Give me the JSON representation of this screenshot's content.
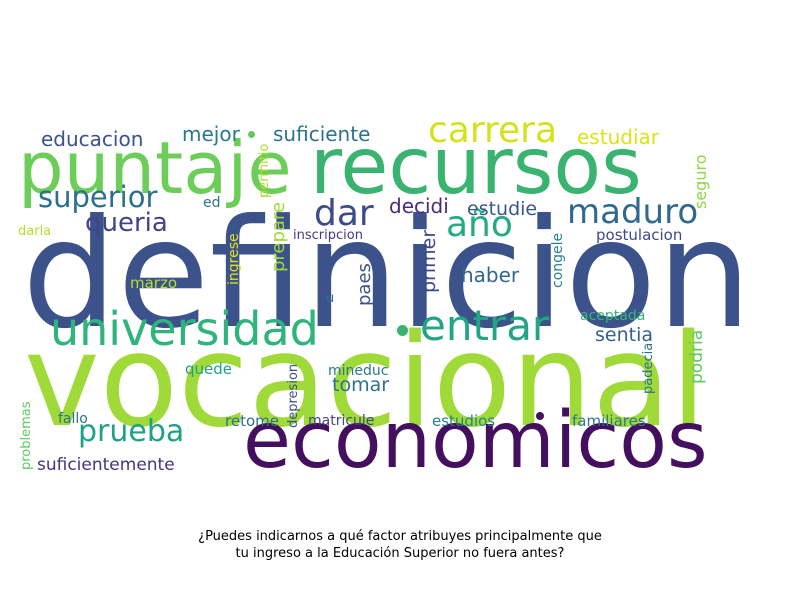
{
  "caption": {
    "line1": "¿Puedes indicarnos a qué factor atribuyes principalmente que",
    "line2": "tu ingreso a la Educación Superior no fuera antes?"
  },
  "colors": {
    "dark_purple": "#482173",
    "indigo": "#3b528b",
    "blue": "#2c728e",
    "teal": "#21918c",
    "green_teal": "#28ae80",
    "green": "#5ec962",
    "lime": "#addc30",
    "yellow": "#e4e419"
  },
  "words": [
    {
      "id": "definicion",
      "text": "definicion",
      "color": "#3b528b"
    },
    {
      "id": "vocacional",
      "text": "vocacional",
      "color": "#a0da39"
    },
    {
      "id": "economicos",
      "text": "economicos",
      "color": "#440f5e"
    },
    {
      "id": "recursos",
      "text": "recursos",
      "color": "#3ab371"
    },
    {
      "id": "puntaje",
      "text": "puntaje",
      "color": "#6cce59"
    },
    {
      "id": "universidad",
      "text": "universidad",
      "color": "#2fb47c"
    },
    {
      "id": "entrar",
      "text": "entrar",
      "color": "#21a585"
    },
    {
      "id": "carrera",
      "text": "carrera",
      "color": "#d5e21a"
    },
    {
      "id": "maduro",
      "text": "maduro",
      "color": "#31688e"
    },
    {
      "id": "dar",
      "text": "dar",
      "color": "#3e4a89"
    },
    {
      "id": "ano",
      "text": "año",
      "color": "#25ab82"
    },
    {
      "id": "superior",
      "text": "superior",
      "color": "#2d708e"
    },
    {
      "id": "prueba",
      "text": "prueba",
      "color": "#1fa187"
    },
    {
      "id": "queria",
      "text": "queria",
      "color": "#414487"
    },
    {
      "id": "educacion",
      "text": "educacion",
      "color": "#3b528b"
    },
    {
      "id": "mejor",
      "text": "mejor",
      "color": "#2a788e"
    },
    {
      "id": "suficiente",
      "text": "suficiente",
      "color": "#2c728e"
    },
    {
      "id": "estudiar",
      "text": "estudiar",
      "color": "#dde318"
    },
    {
      "id": "decidi",
      "text": "decidi",
      "color": "#472d7b"
    },
    {
      "id": "estudie",
      "text": "estudie",
      "color": "#38588c"
    },
    {
      "id": "haber",
      "text": "haber",
      "color": "#31688e"
    },
    {
      "id": "sentia",
      "text": "sentia",
      "color": "#355f8d"
    },
    {
      "id": "tomar",
      "text": "tomar",
      "color": "#2c728e"
    },
    {
      "id": "suficientemente",
      "text": "suficientemente",
      "color": "#46337e"
    },
    {
      "id": "seguro",
      "text": "seguro",
      "color": "#90d743"
    },
    {
      "id": "podria",
      "text": "podria",
      "color": "#5ec962"
    },
    {
      "id": "postulacion",
      "text": "postulacion",
      "color": "#3e4989"
    },
    {
      "id": "aceptada",
      "text": "aceptada",
      "color": "#35b779"
    },
    {
      "id": "familiares",
      "text": "familiares",
      "color": "#2a788e"
    },
    {
      "id": "estudios",
      "text": "estudios",
      "color": "#26828e"
    },
    {
      "id": "matricule",
      "text": "matricule",
      "color": "#414487"
    },
    {
      "id": "retome",
      "text": "retome",
      "color": "#2c728e"
    },
    {
      "id": "inscripcion",
      "text": "inscripcion",
      "color": "#443983"
    },
    {
      "id": "ed",
      "text": "ed",
      "color": "#2c728e"
    },
    {
      "id": "darla",
      "text": "darla",
      "color": "#b5de2b"
    },
    {
      "id": "marzo",
      "text": "marzo",
      "color": "#b5de2b"
    },
    {
      "id": "quede",
      "text": "quede",
      "color": "#1fa187"
    },
    {
      "id": "mineduc",
      "text": "mineduc",
      "color": "#2a788e"
    },
    {
      "id": "fallo",
      "text": "fallo",
      "color": "#2c728e"
    },
    {
      "id": "u",
      "text": "u",
      "color": "#2c728e"
    },
    {
      "id": "primer",
      "text": "primer",
      "color": "#3e4989"
    },
    {
      "id": "paes",
      "text": "paes",
      "color": "#3b528b"
    },
    {
      "id": "prepare",
      "text": "prepare",
      "color": "#a0da39"
    },
    {
      "id": "permitio",
      "text": "permitio",
      "color": "#addc30"
    },
    {
      "id": "ingrese",
      "text": "ingrese",
      "color": "#e4e419"
    },
    {
      "id": "congele",
      "text": "congele",
      "color": "#26828e"
    },
    {
      "id": "depresion",
      "text": "depresion",
      "color": "#3b528b"
    },
    {
      "id": "padecia",
      "text": "padecia",
      "color": "#2c728e"
    },
    {
      "id": "problemas",
      "text": "problemas",
      "color": "#5ec962"
    }
  ]
}
